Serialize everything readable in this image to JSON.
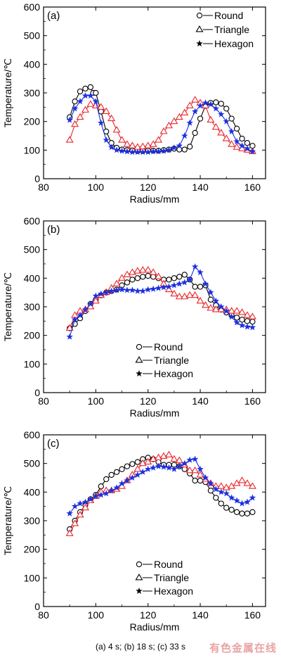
{
  "caption": "(a) 4 s; (b)  18 s; (c) 33 s",
  "watermark": "有色金属在线",
  "colors": {
    "round": "#000000",
    "triangle": "#e8282d",
    "hexagon": "#1c2fe0"
  },
  "chart_data": [
    {
      "type": "line",
      "panel_label": "(a)",
      "xlabel": "Radius/mm",
      "ylabel": "Temperature/℃",
      "xlim": [
        80,
        165
      ],
      "ylim": [
        0,
        600
      ],
      "xticks": [
        80,
        100,
        120,
        140,
        160
      ],
      "yticks": [
        0,
        100,
        200,
        300,
        400,
        500,
        600
      ],
      "legend_position": "top-right",
      "series": [
        {
          "name": "Round",
          "marker": "circle",
          "x": [
            90,
            92,
            94,
            96,
            98,
            99,
            100,
            102,
            104,
            106,
            108,
            110,
            112,
            114,
            116,
            118,
            120,
            122,
            124,
            126,
            128,
            130,
            132,
            134,
            136,
            138,
            140,
            142,
            144,
            146,
            148,
            150,
            152,
            154,
            156,
            158,
            160
          ],
          "y": [
            215,
            270,
            305,
            315,
            320,
            300,
            300,
            235,
            165,
            125,
            108,
            102,
            100,
            98,
            97,
            97,
            98,
            98,
            98,
            100,
            102,
            105,
            102,
            102,
            112,
            160,
            210,
            255,
            265,
            267,
            262,
            245,
            210,
            175,
            140,
            125,
            115
          ]
        },
        {
          "name": "Triangle",
          "marker": "triangle",
          "x": [
            90,
            92,
            94,
            96,
            98,
            100,
            102,
            104,
            106,
            108,
            110,
            112,
            114,
            116,
            118,
            120,
            122,
            124,
            126,
            128,
            130,
            132,
            134,
            136,
            138,
            140,
            142,
            144,
            146,
            148,
            150,
            152,
            154,
            156,
            158,
            160
          ],
          "y": [
            135,
            190,
            215,
            240,
            260,
            255,
            250,
            235,
            210,
            170,
            135,
            120,
            115,
            110,
            112,
            115,
            120,
            135,
            165,
            185,
            200,
            215,
            230,
            255,
            275,
            265,
            255,
            205,
            180,
            160,
            140,
            120,
            110,
            105,
            100,
            95
          ]
        },
        {
          "name": "Hexagon",
          "marker": "star",
          "x": [
            90,
            92,
            94,
            96,
            98,
            100,
            102,
            104,
            106,
            108,
            110,
            112,
            114,
            116,
            118,
            120,
            122,
            124,
            126,
            128,
            130,
            132,
            134,
            136,
            138,
            140,
            142,
            144,
            146,
            148,
            150,
            152,
            154,
            156,
            158,
            160
          ],
          "y": [
            205,
            245,
            270,
            290,
            290,
            270,
            195,
            135,
            110,
            100,
            97,
            95,
            93,
            93,
            93,
            93,
            95,
            95,
            97,
            100,
            108,
            115,
            150,
            195,
            235,
            255,
            265,
            260,
            245,
            225,
            200,
            165,
            130,
            115,
            105,
            95
          ]
        }
      ]
    },
    {
      "type": "line",
      "panel_label": "(b)",
      "xlabel": "Radius/mm",
      "ylabel": "Temperature/℃",
      "xlim": [
        80,
        165
      ],
      "ylim": [
        0,
        600
      ],
      "xticks": [
        80,
        100,
        120,
        140,
        160
      ],
      "yticks": [
        0,
        100,
        200,
        300,
        400,
        500,
        600
      ],
      "legend_position": "bottom-center",
      "series": [
        {
          "name": "Round",
          "marker": "circle",
          "x": [
            90,
            92,
            94,
            96,
            98,
            100,
            102,
            104,
            106,
            108,
            110,
            112,
            114,
            116,
            118,
            120,
            122,
            124,
            126,
            128,
            130,
            132,
            134,
            136,
            138,
            140,
            142,
            144,
            146,
            148,
            150,
            152,
            154,
            156,
            158,
            160
          ],
          "y": [
            225,
            240,
            260,
            285,
            310,
            325,
            340,
            350,
            355,
            360,
            375,
            385,
            395,
            400,
            405,
            408,
            405,
            400,
            395,
            395,
            400,
            405,
            412,
            395,
            370,
            370,
            375,
            325,
            305,
            290,
            280,
            270,
            262,
            255,
            250,
            248
          ]
        },
        {
          "name": "Triangle",
          "marker": "triangle",
          "x": [
            90,
            92,
            94,
            96,
            98,
            100,
            102,
            104,
            106,
            108,
            110,
            112,
            114,
            116,
            118,
            120,
            122,
            124,
            126,
            128,
            130,
            132,
            134,
            136,
            138,
            140,
            142,
            144,
            146,
            148,
            150,
            152,
            154,
            156,
            158,
            160
          ],
          "y": [
            225,
            270,
            285,
            290,
            300,
            320,
            340,
            350,
            365,
            380,
            400,
            412,
            420,
            425,
            428,
            428,
            420,
            405,
            380,
            360,
            345,
            335,
            335,
            340,
            340,
            320,
            305,
            295,
            290,
            290,
            290,
            285,
            285,
            280,
            270,
            265
          ]
        },
        {
          "name": "Hexagon",
          "marker": "star",
          "x": [
            90,
            92,
            94,
            96,
            98,
            100,
            102,
            104,
            106,
            108,
            110,
            112,
            114,
            116,
            118,
            120,
            122,
            124,
            126,
            128,
            130,
            132,
            134,
            136,
            138,
            140,
            142,
            144,
            146,
            148,
            150,
            152,
            154,
            156,
            158,
            160
          ],
          "y": [
            195,
            255,
            270,
            290,
            310,
            338,
            345,
            350,
            355,
            358,
            360,
            358,
            358,
            355,
            355,
            360,
            362,
            365,
            368,
            370,
            375,
            380,
            385,
            395,
            440,
            420,
            380,
            350,
            320,
            300,
            285,
            265,
            245,
            235,
            230,
            228
          ]
        }
      ]
    },
    {
      "type": "line",
      "panel_label": "(c)",
      "xlabel": "Radius/mm",
      "ylabel": "Temperature/℃",
      "xlim": [
        80,
        165
      ],
      "ylim": [
        0,
        600
      ],
      "xticks": [
        80,
        100,
        120,
        140,
        160
      ],
      "yticks": [
        0,
        100,
        200,
        300,
        400,
        500,
        600
      ],
      "legend_position": "bottom-center",
      "series": [
        {
          "name": "Round",
          "marker": "circle",
          "x": [
            90,
            92,
            94,
            96,
            98,
            100,
            102,
            104,
            106,
            108,
            110,
            112,
            114,
            116,
            118,
            120,
            122,
            124,
            126,
            128,
            130,
            132,
            134,
            136,
            138,
            140,
            142,
            144,
            146,
            148,
            150,
            152,
            154,
            156,
            158,
            160
          ],
          "y": [
            270,
            300,
            330,
            355,
            375,
            390,
            420,
            445,
            460,
            470,
            480,
            490,
            498,
            505,
            515,
            520,
            515,
            505,
            495,
            495,
            495,
            490,
            480,
            465,
            440,
            440,
            435,
            405,
            380,
            360,
            345,
            338,
            330,
            325,
            325,
            330
          ]
        },
        {
          "name": "Triangle",
          "marker": "triangle",
          "x": [
            90,
            92,
            94,
            96,
            98,
            100,
            102,
            104,
            106,
            108,
            110,
            112,
            114,
            116,
            118,
            120,
            122,
            124,
            126,
            128,
            130,
            132,
            134,
            136,
            138,
            140,
            142,
            144,
            146,
            148,
            150,
            152,
            154,
            156,
            158,
            160
          ],
          "y": [
            255,
            290,
            320,
            345,
            370,
            385,
            400,
            405,
            405,
            410,
            420,
            440,
            460,
            480,
            500,
            505,
            515,
            520,
            525,
            530,
            515,
            510,
            495,
            475,
            475,
            460,
            445,
            430,
            420,
            420,
            415,
            420,
            430,
            440,
            430,
            420
          ]
        },
        {
          "name": "Hexagon",
          "marker": "star",
          "x": [
            90,
            92,
            94,
            96,
            98,
            100,
            102,
            104,
            106,
            108,
            110,
            112,
            114,
            116,
            118,
            120,
            122,
            124,
            126,
            128,
            130,
            132,
            134,
            136,
            138,
            140,
            142,
            144,
            146,
            148,
            150,
            152,
            154,
            156,
            158,
            160
          ],
          "y": [
            325,
            350,
            360,
            365,
            375,
            385,
            390,
            395,
            405,
            415,
            430,
            440,
            450,
            460,
            470,
            480,
            485,
            490,
            488,
            485,
            480,
            490,
            500,
            512,
            515,
            480,
            450,
            430,
            410,
            400,
            395,
            380,
            370,
            360,
            365,
            380
          ]
        }
      ]
    }
  ]
}
